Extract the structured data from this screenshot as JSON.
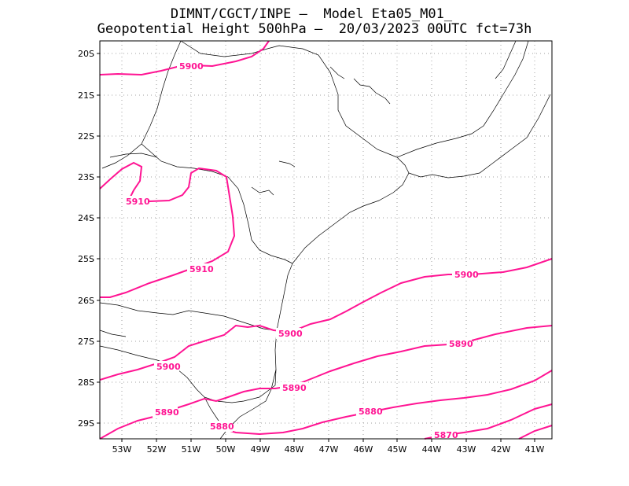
{
  "header": {
    "line1": "DIMNT/CGCT/INPE —  Model Eta05_M01_",
    "line2": "Geopotential Height 500hPa —  20/03/2023 00UTC fct=73h"
  },
  "map": {
    "lon_range": [
      -53.6,
      -40.5
    ],
    "lat_range": [
      -29.4,
      -19.7
    ],
    "x_ticks": [
      "53W",
      "52W",
      "51W",
      "50W",
      "49W",
      "48W",
      "47W",
      "46W",
      "45W",
      "44W",
      "43W",
      "42W",
      "41W"
    ],
    "y_ticks": [
      "20S",
      "21S",
      "22S",
      "23S",
      "24S",
      "25S",
      "26S",
      "27S",
      "28S",
      "29S"
    ],
    "grid": true,
    "contour_color": "#ff1493",
    "contour_labels": [
      "5900",
      "5910",
      "5910",
      "5900",
      "5900",
      "5890",
      "5890",
      "5880",
      "5880",
      "5900",
      "5890",
      "5870"
    ]
  }
}
